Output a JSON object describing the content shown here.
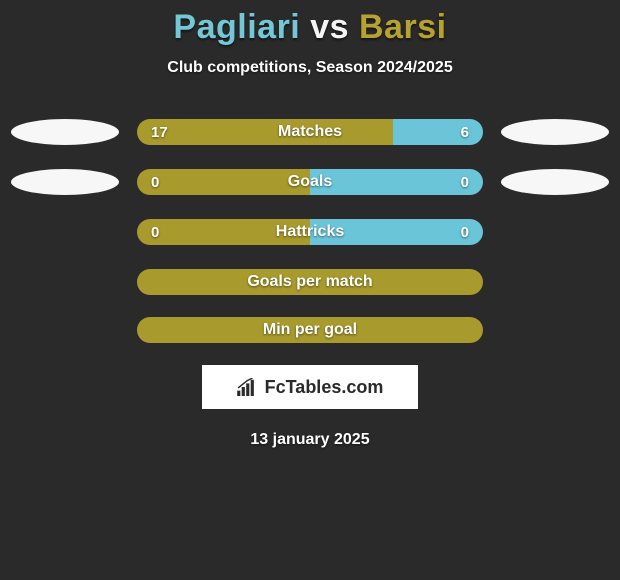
{
  "title_player1": "Pagliari",
  "title_vs": "vs",
  "title_player2": "Barsi",
  "subtitle": "Club competitions, Season 2024/2025",
  "colors": {
    "title_p1": "#73c7d6",
    "title_vs": "#f4f4f4",
    "title_p2": "#b5a22f",
    "bg": "#2a2a2a",
    "bar_left": "#a89a2c",
    "bar_right": "#6bc5d8",
    "bar_single": "#a89a2c",
    "ellipse": "#f7f7f7"
  },
  "rows": [
    {
      "label": "Matches",
      "left": "17",
      "right": "6",
      "left_pct": 74,
      "right_pct": 26,
      "show_ellipse": true
    },
    {
      "label": "Goals",
      "left": "0",
      "right": "0",
      "left_pct": 50,
      "right_pct": 50,
      "show_ellipse": true
    },
    {
      "label": "Hattricks",
      "left": "0",
      "right": "0",
      "left_pct": 50,
      "right_pct": 50,
      "show_ellipse": false
    }
  ],
  "single_bars": [
    {
      "label": "Goals per match"
    },
    {
      "label": "Min per goal"
    }
  ],
  "logo_text": "FcTables.com",
  "date": "13 january 2025",
  "fontsize": {
    "title": 34,
    "subtitle": 16,
    "label": 16,
    "value": 15
  }
}
